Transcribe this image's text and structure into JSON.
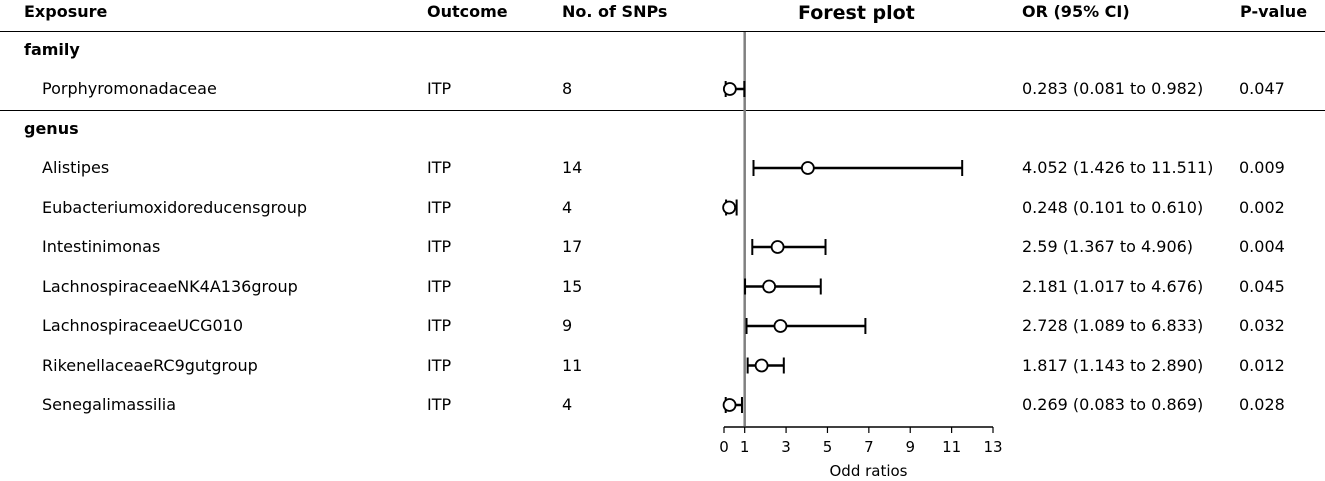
{
  "header": {
    "exposure": "Exposure",
    "outcome": "Outcome",
    "snps": "No. of SNPs",
    "plot_title": "Forest plot",
    "or": "OR (95% CI)",
    "pvalue": "P-value"
  },
  "groups": [
    {
      "label": "family",
      "rows": [
        {
          "exposure": "Porphyromonadaceae",
          "outcome": "ITP",
          "snps": "8",
          "or_text": "0.283 (0.081 to 0.982)",
          "p": "0.047"
        }
      ]
    },
    {
      "label": "genus",
      "rows": [
        {
          "exposure": "Alistipes",
          "outcome": "ITP",
          "snps": "14",
          "or_text": "4.052 (1.426 to 11.511)",
          "p": "0.009"
        },
        {
          "exposure": "Eubacteriumoxidoreducensgroup",
          "outcome": "ITP",
          "snps": "4",
          "or_text": "0.248 (0.101 to 0.610)",
          "p": "0.002"
        },
        {
          "exposure": "Intestinimonas",
          "outcome": "ITP",
          "snps": "17",
          "or_text": "2.59 (1.367 to 4.906)",
          "p": "0.004"
        },
        {
          "exposure": "LachnospiraceaeNK4A136group",
          "outcome": "ITP",
          "snps": "15",
          "or_text": "2.181 (1.017 to 4.676)",
          "p": "0.045"
        },
        {
          "exposure": "LachnospiraceaeUCG010",
          "outcome": "ITP",
          "snps": "9",
          "or_text": "2.728 (1.089 to 6.833)",
          "p": "0.032"
        },
        {
          "exposure": "RikenellaceaeRC9gutgroup",
          "outcome": "ITP",
          "snps": "11",
          "or_text": "1.817 (1.143 to 2.890)",
          "p": "0.012"
        },
        {
          "exposure": "Senegalimassilia",
          "outcome": "ITP",
          "snps": "4",
          "or_text": "0.269 (0.083 to 0.869)",
          "p": "0.028"
        }
      ]
    }
  ],
  "chart_data": {
    "type": "scatter",
    "title": "Forest plot",
    "xlabel": "Odd ratios",
    "xlim": [
      0,
      13
    ],
    "xticks": [
      0,
      1,
      3,
      5,
      7,
      9,
      11,
      13
    ],
    "reference_line": 1,
    "series": [
      {
        "label": "Porphyromonadaceae",
        "or": 0.283,
        "lower": 0.081,
        "upper": 0.982
      },
      {
        "label": "Alistipes",
        "or": 4.052,
        "lower": 1.426,
        "upper": 11.511
      },
      {
        "label": "Eubacteriumoxidoreducensgroup",
        "or": 0.248,
        "lower": 0.101,
        "upper": 0.61
      },
      {
        "label": "Intestinimonas",
        "or": 2.59,
        "lower": 1.367,
        "upper": 4.906
      },
      {
        "label": "LachnospiraceaeNK4A136group",
        "or": 2.181,
        "lower": 1.017,
        "upper": 4.676
      },
      {
        "label": "LachnospiraceaeUCG010",
        "or": 2.728,
        "lower": 1.089,
        "upper": 6.833
      },
      {
        "label": "RikenellaceaeRC9gutgroup",
        "or": 1.817,
        "lower": 1.143,
        "upper": 2.89
      },
      {
        "label": "Senegalimassilia",
        "or": 0.269,
        "lower": 0.083,
        "upper": 0.869
      }
    ]
  }
}
